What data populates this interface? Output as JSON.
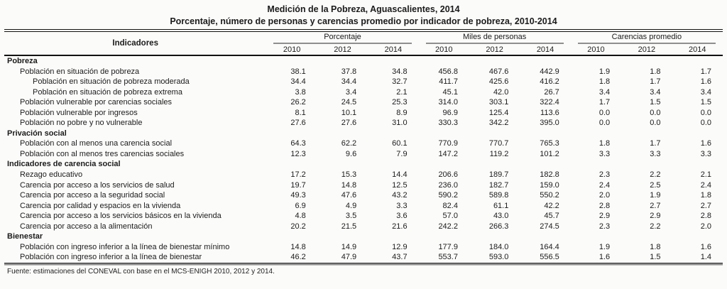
{
  "title": "Medición de la Pobreza, Aguascalientes, 2014",
  "subtitle": "Porcentaje, número de personas y carencias promedio por indicador de pobreza, 2010-2014",
  "table": {
    "indicator_header": "Indicadores",
    "groups": [
      {
        "label": "Porcentaje",
        "years": [
          "2010",
          "2012",
          "2014"
        ]
      },
      {
        "label": "Miles de personas",
        "years": [
          "2010",
          "2012",
          "2014"
        ]
      },
      {
        "label": "Carencias promedio",
        "years": [
          "2010",
          "2012",
          "2014"
        ]
      }
    ],
    "rows": [
      {
        "type": "section",
        "indent": 0,
        "label": "Pobreza",
        "values": []
      },
      {
        "type": "data",
        "indent": 1,
        "label": "Población en situación de pobreza",
        "values": [
          "38.1",
          "37.8",
          "34.8",
          "456.8",
          "467.6",
          "442.9",
          "1.9",
          "1.8",
          "1.7"
        ]
      },
      {
        "type": "data",
        "indent": 2,
        "label": "Población en situación de pobreza moderada",
        "values": [
          "34.4",
          "34.4",
          "32.7",
          "411.7",
          "425.6",
          "416.2",
          "1.8",
          "1.7",
          "1.6"
        ]
      },
      {
        "type": "data",
        "indent": 2,
        "label": "Población en situación de pobreza extrema",
        "values": [
          "3.8",
          "3.4",
          "2.1",
          "45.1",
          "42.0",
          "26.7",
          "3.4",
          "3.4",
          "3.4"
        ]
      },
      {
        "type": "data",
        "indent": 1,
        "label": "Población vulnerable por carencias sociales",
        "values": [
          "26.2",
          "24.5",
          "25.3",
          "314.0",
          "303.1",
          "322.4",
          "1.7",
          "1.5",
          "1.5"
        ]
      },
      {
        "type": "data",
        "indent": 1,
        "label": "Población vulnerable por ingresos",
        "values": [
          "8.1",
          "10.1",
          "8.9",
          "96.9",
          "125.4",
          "113.6",
          "0.0",
          "0.0",
          "0.0"
        ]
      },
      {
        "type": "data",
        "indent": 1,
        "label": "Población no pobre y no vulnerable",
        "values": [
          "27.6",
          "27.6",
          "31.0",
          "330.3",
          "342.2",
          "395.0",
          "0.0",
          "0.0",
          "0.0"
        ]
      },
      {
        "type": "section",
        "indent": 0,
        "label": "Privación social",
        "values": []
      },
      {
        "type": "data",
        "indent": 1,
        "label": "Población con al menos una carencia social",
        "values": [
          "64.3",
          "62.2",
          "60.1",
          "770.9",
          "770.7",
          "765.3",
          "1.8",
          "1.7",
          "1.6"
        ]
      },
      {
        "type": "data",
        "indent": 1,
        "label": "Población con al menos tres carencias sociales",
        "values": [
          "12.3",
          "9.6",
          "7.9",
          "147.2",
          "119.2",
          "101.2",
          "3.3",
          "3.3",
          "3.3"
        ]
      },
      {
        "type": "section",
        "indent": 0,
        "label": "Indicadores de carencia social",
        "values": []
      },
      {
        "type": "data",
        "indent": 1,
        "label": "Rezago educativo",
        "values": [
          "17.2",
          "15.3",
          "14.4",
          "206.6",
          "189.7",
          "182.8",
          "2.3",
          "2.2",
          "2.1"
        ]
      },
      {
        "type": "data",
        "indent": 1,
        "label": "Carencia por acceso a los servicios de salud",
        "values": [
          "19.7",
          "14.8",
          "12.5",
          "236.0",
          "182.7",
          "159.0",
          "2.4",
          "2.5",
          "2.4"
        ]
      },
      {
        "type": "data",
        "indent": 1,
        "label": "Carencia por acceso a la seguridad social",
        "values": [
          "49.3",
          "47.6",
          "43.2",
          "590.2",
          "589.8",
          "550.2",
          "2.0",
          "1.9",
          "1.8"
        ]
      },
      {
        "type": "data",
        "indent": 1,
        "label": "Carencia por calidad y espacios en la vivienda",
        "values": [
          "6.9",
          "4.9",
          "3.3",
          "82.4",
          "61.1",
          "42.2",
          "2.8",
          "2.7",
          "2.7"
        ]
      },
      {
        "type": "data",
        "indent": 1,
        "label": "Carencia por acceso a los servicios básicos en la vivienda",
        "values": [
          "4.8",
          "3.5",
          "3.6",
          "57.0",
          "43.0",
          "45.7",
          "2.9",
          "2.9",
          "2.8"
        ]
      },
      {
        "type": "data",
        "indent": 1,
        "label": "Carencia por acceso a la alimentación",
        "values": [
          "20.2",
          "21.5",
          "21.6",
          "242.2",
          "266.3",
          "274.5",
          "2.3",
          "2.2",
          "2.0"
        ]
      },
      {
        "type": "section",
        "indent": 0,
        "label": "Bienestar",
        "values": []
      },
      {
        "type": "data",
        "indent": 1,
        "label": "Población con ingreso inferior a la línea de bienestar mínimo",
        "values": [
          "14.8",
          "14.9",
          "12.9",
          "177.9",
          "184.0",
          "164.4",
          "1.9",
          "1.8",
          "1.6"
        ]
      },
      {
        "type": "data",
        "indent": 1,
        "label": "Población con ingreso inferior a la línea de bienestar",
        "values": [
          "46.2",
          "47.9",
          "43.7",
          "553.7",
          "593.0",
          "556.5",
          "1.6",
          "1.5",
          "1.4"
        ]
      }
    ]
  },
  "footer": "Fuente: estimaciones del CONEVAL con base en el MCS-ENIGH 2010, 2012 y 2014.",
  "colors": {
    "text": "#1b1b1b",
    "rule_dark": "#111111",
    "rule_gray": "#8f8f8f",
    "background": "#fbfbfa"
  }
}
